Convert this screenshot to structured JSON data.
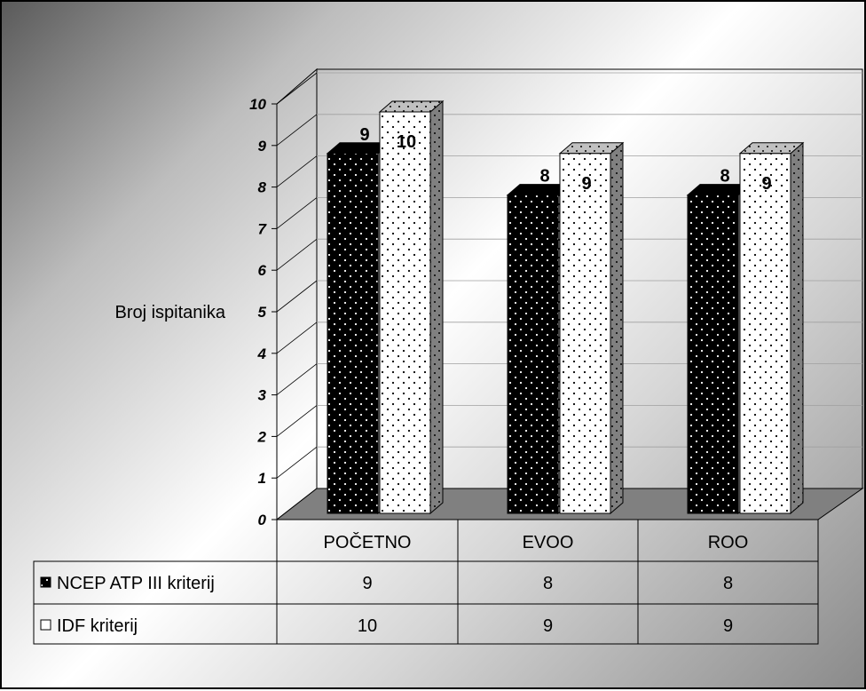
{
  "chart_data": {
    "type": "bar",
    "categories": [
      "POČETNO",
      "EVOO",
      "ROO"
    ],
    "series": [
      {
        "name": "NCEP ATP III kriterij",
        "values": [
          9,
          8,
          8
        ],
        "color": "#000000",
        "pattern": "dots-on-black"
      },
      {
        "name": "IDF kriterij",
        "values": [
          10,
          9,
          9
        ],
        "color": "#ffffff",
        "pattern": "dots-on-white"
      }
    ],
    "ylabel": "Broj ispitanika",
    "ylim": [
      0,
      10
    ],
    "yticks": [
      "0",
      "1",
      "2",
      "3",
      "4",
      "5",
      "6",
      "7",
      "8",
      "9",
      "10"
    ],
    "grid": true,
    "legend": "data table below chart",
    "data_table": true
  }
}
